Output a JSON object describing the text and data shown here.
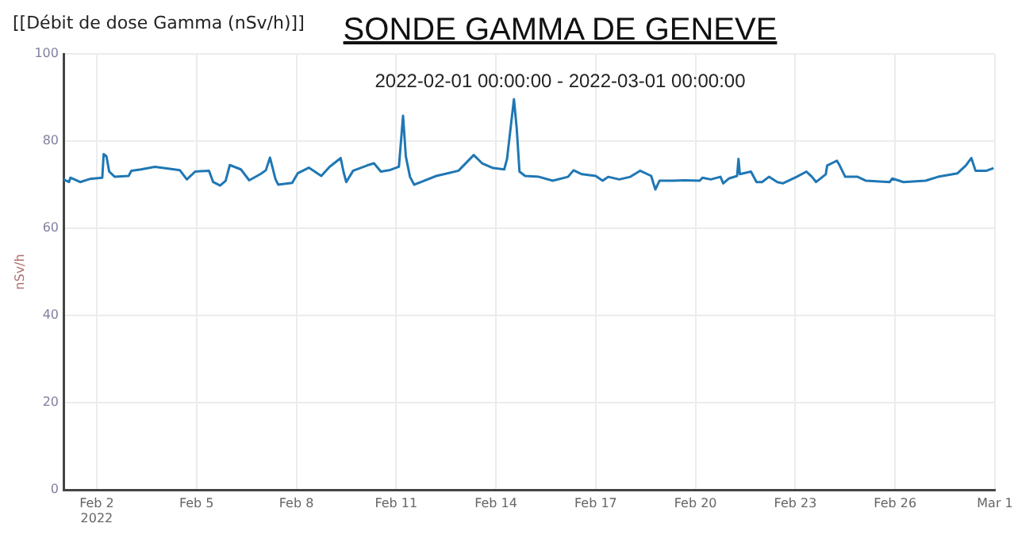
{
  "chart_data": {
    "type": "line",
    "title": "SONDE GAMMA DE GENEVE",
    "subtitle": "2022-02-01 00:00:00 - 2022-03-01 00:00:00",
    "ylabel": "nSv/h",
    "annotations": [
      "[[Débit de dose Gamma (nSv/h)]]"
    ],
    "x": [
      "2022-02-01T00:00",
      "2022-02-01T04:00",
      "2022-02-01T05:00",
      "2022-02-01T12:00",
      "2022-02-01T19:00",
      "2022-02-02T04:00",
      "2022-02-02T05:00",
      "2022-02-02T07:00",
      "2022-02-02T09:00",
      "2022-02-02T13:00",
      "2022-02-02T23:00",
      "2022-02-03T01:00",
      "2022-02-03T08:00",
      "2022-02-03T18:00",
      "2022-02-04T12:00",
      "2022-02-04T17:00",
      "2022-02-04T23:00",
      "2022-02-05T09:00",
      "2022-02-05T12:00",
      "2022-02-05T17:00",
      "2022-02-05T21:00",
      "2022-02-06T00:00",
      "2022-02-06T08:00",
      "2022-02-06T14:00",
      "2022-02-06T22:00",
      "2022-02-07T02:00",
      "2022-02-07T05:00",
      "2022-02-07T09:00",
      "2022-02-07T11:00",
      "2022-02-07T21:00",
      "2022-02-08T01:00",
      "2022-02-08T09:00",
      "2022-02-08T18:00",
      "2022-02-09T00:00",
      "2022-02-09T08:00",
      "2022-02-09T10:00",
      "2022-02-09T12:00",
      "2022-02-09T17:00",
      "2022-02-10T03:00",
      "2022-02-10T08:00",
      "2022-02-10T13:00",
      "2022-02-10T19:00",
      "2022-02-11T02:00",
      "2022-02-11T05:00",
      "2022-02-11T07:00",
      "2022-02-11T10:00",
      "2022-02-11T13:00",
      "2022-02-11T18:00",
      "2022-02-12T05:00",
      "2022-02-12T13:00",
      "2022-02-12T21:00",
      "2022-02-13T08:00",
      "2022-02-13T14:00",
      "2022-02-13T22:00",
      "2022-02-14T06:00",
      "2022-02-14T08:00",
      "2022-02-14T13:00",
      "2022-02-14T15:00",
      "2022-02-14T17:00",
      "2022-02-14T21:00",
      "2022-02-15T07:00",
      "2022-02-15T17:00",
      "2022-02-16T04:00",
      "2022-02-16T08:00",
      "2022-02-16T14:00",
      "2022-02-17T00:00",
      "2022-02-17T05:00",
      "2022-02-17T09:00",
      "2022-02-17T17:00",
      "2022-02-18T01:00",
      "2022-02-18T08:00",
      "2022-02-18T16:00",
      "2022-02-18T19:00",
      "2022-02-18T22:00",
      "2022-02-19T08:00",
      "2022-02-19T16:00",
      "2022-02-20T03:00",
      "2022-02-20T05:00",
      "2022-02-20T11:00",
      "2022-02-20T18:00",
      "2022-02-20T20:00",
      "2022-02-21T00:00",
      "2022-02-21T06:00",
      "2022-02-21T07:00",
      "2022-02-21T08:00",
      "2022-02-21T16:00",
      "2022-02-21T20:00",
      "2022-02-22T00:00",
      "2022-02-22T05:00",
      "2022-02-22T11:00",
      "2022-02-22T15:00",
      "2022-02-23T01:00",
      "2022-02-23T08:00",
      "2022-02-23T12:00",
      "2022-02-23T15:00",
      "2022-02-23T22:00",
      "2022-02-23T23:00",
      "2022-02-24T06:00",
      "2022-02-24T08:00",
      "2022-02-24T12:00",
      "2022-02-24T21:00",
      "2022-02-25T03:00",
      "2022-02-25T20:00",
      "2022-02-25T22:00",
      "2022-02-26T06:00",
      "2022-02-26T22:00",
      "2022-02-27T07:00",
      "2022-02-27T21:00",
      "2022-02-28T03:00",
      "2022-02-28T07:00",
      "2022-02-28T10:00",
      "2022-02-28T18:00",
      "2022-02-28T23:00"
    ],
    "series": [
      {
        "color": "#1f77b4",
        "values": [
          71.2,
          70.6,
          71.6,
          70.6,
          71.3,
          71.6,
          77.0,
          76.5,
          73.0,
          71.8,
          72.0,
          73.2,
          73.5,
          74.1,
          73.3,
          71.2,
          73.0,
          73.2,
          70.6,
          69.8,
          70.9,
          74.5,
          73.5,
          71.0,
          72.4,
          73.3,
          76.2,
          71.2,
          70.0,
          70.4,
          72.6,
          73.9,
          72.0,
          74.1,
          76.1,
          73.0,
          70.6,
          73.2,
          74.4,
          74.9,
          73.0,
          73.3,
          74.1,
          85.8,
          76.5,
          71.8,
          70.0,
          70.6,
          72.0,
          72.6,
          73.2,
          76.8,
          74.9,
          73.8,
          73.5,
          75.9,
          89.6,
          82.9,
          73.0,
          72.0,
          71.8,
          70.9,
          71.8,
          73.3,
          72.4,
          72.0,
          70.9,
          71.8,
          71.2,
          71.8,
          73.2,
          72.0,
          68.9,
          70.9,
          70.9,
          71.0,
          70.9,
          71.6,
          71.2,
          71.8,
          70.3,
          71.4,
          72.0,
          75.9,
          72.4,
          73.0,
          70.6,
          70.6,
          71.8,
          70.6,
          70.3,
          71.8,
          73.0,
          71.8,
          70.6,
          72.4,
          74.4,
          75.5,
          74.4,
          71.8,
          71.8,
          70.9,
          70.6,
          71.4,
          70.6,
          70.9,
          71.8,
          72.6,
          74.4,
          76.1,
          73.2,
          73.2,
          73.8
        ]
      }
    ],
    "xlim": [
      "2022-02-01T00:00",
      "2022-03-01T00:00"
    ],
    "xticks": [
      {
        "value": "2022-02-02",
        "label": "Feb 2\n2022"
      },
      {
        "value": "2022-02-05",
        "label": "Feb 5"
      },
      {
        "value": "2022-02-08",
        "label": "Feb 8"
      },
      {
        "value": "2022-02-11",
        "label": "Feb 11"
      },
      {
        "value": "2022-02-14",
        "label": "Feb 14"
      },
      {
        "value": "2022-02-17",
        "label": "Feb 17"
      },
      {
        "value": "2022-02-20",
        "label": "Feb 20"
      },
      {
        "value": "2022-02-23",
        "label": "Feb 23"
      },
      {
        "value": "2022-02-26",
        "label": "Feb 26"
      },
      {
        "value": "2022-03-01",
        "label": "Mar 1"
      }
    ],
    "ylim": [
      0,
      100
    ],
    "yticks": [
      0,
      20,
      40,
      60,
      80,
      100
    ],
    "grid": true,
    "marker": "none",
    "line_style": "solid"
  }
}
